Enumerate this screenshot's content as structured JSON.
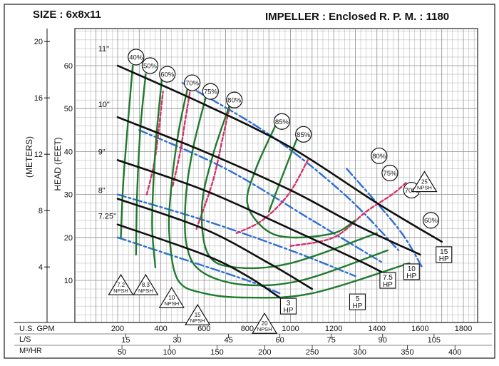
{
  "header": {
    "size_label": "SIZE : 6x8x11",
    "impeller_label": "IMPELLER : Enclosed R. P. M. : 1180"
  },
  "colors": {
    "background": "#ffffff",
    "grid": "#8e8e8e",
    "head_curve": "#101010",
    "efficiency_curve": "#1f7a2e",
    "npsh_curve": "#d6336c",
    "hp_curve": "#2f6fd1"
  },
  "chart_data": {
    "type": "line",
    "title": "",
    "rpm": 1180,
    "grid": true,
    "x_axes": [
      {
        "label": "U.S. GPM",
        "ticks": [
          "200",
          "400",
          "600",
          "800",
          "1000",
          "1200",
          "1400",
          "1600",
          "1800"
        ]
      },
      {
        "label": "L/S",
        "ticks": [
          "15",
          "30",
          "45",
          "60",
          "75",
          "90",
          "105"
        ]
      },
      {
        "label": "M³/HR",
        "ticks": [
          "50",
          "100",
          "150",
          "200",
          "250",
          "300",
          "350",
          "400"
        ]
      }
    ],
    "y_axes": [
      {
        "label": "HEAD (FEET)",
        "ticks": [
          "10",
          "20",
          "30",
          "40",
          "50",
          "60"
        ]
      },
      {
        "label": "(METERS)",
        "ticks": [
          "4",
          "8",
          "12",
          "16",
          "20"
        ]
      }
    ],
    "xlim": [
      0,
      1800
    ],
    "ylim": [
      0,
      68
    ],
    "series": [
      {
        "name": "11\"",
        "kind": "head",
        "points": [
          [
            200,
            60
          ],
          [
            600,
            51
          ],
          [
            1000,
            41
          ],
          [
            1400,
            28
          ],
          [
            1700,
            19
          ]
        ]
      },
      {
        "name": "10\"",
        "kind": "head",
        "points": [
          [
            200,
            48
          ],
          [
            600,
            40
          ],
          [
            1000,
            31
          ],
          [
            1300,
            23
          ],
          [
            1600,
            16
          ]
        ]
      },
      {
        "name": "9\"",
        "kind": "head",
        "points": [
          [
            200,
            38
          ],
          [
            600,
            31
          ],
          [
            1000,
            22
          ],
          [
            1300,
            15
          ],
          [
            1420,
            12
          ]
        ]
      },
      {
        "name": "8\"",
        "kind": "head",
        "points": [
          [
            200,
            29
          ],
          [
            600,
            22
          ],
          [
            900,
            14
          ],
          [
            1100,
            8
          ]
        ]
      },
      {
        "name": "7.25\"",
        "kind": "head",
        "points": [
          [
            200,
            23
          ],
          [
            600,
            16
          ],
          [
            800,
            11
          ],
          [
            950,
            6
          ]
        ]
      },
      {
        "name": "40%",
        "kind": "efficiency",
        "points": [
          [
            270,
            60
          ],
          [
            245,
            45
          ],
          [
            225,
            32
          ],
          [
            215,
            20
          ]
        ]
      },
      {
        "name": "50%",
        "kind": "efficiency",
        "points": [
          [
            330,
            58
          ],
          [
            305,
            45
          ],
          [
            290,
            30
          ],
          [
            285,
            16
          ]
        ]
      },
      {
        "name": "60%",
        "kind": "efficiency",
        "points": [
          [
            405,
            57
          ],
          [
            380,
            44
          ],
          [
            365,
            32
          ],
          [
            360,
            22
          ],
          [
            375,
            13
          ]
        ]
      },
      {
        "name": "70%",
        "kind": "efficiency",
        "points": [
          [
            525,
            55
          ],
          [
            480,
            44
          ],
          [
            445,
            30
          ],
          [
            440,
            20
          ],
          [
            480,
            10
          ],
          [
            600,
            7
          ],
          [
            800,
            6
          ],
          [
            1100,
            7
          ],
          [
            1550,
            14
          ]
        ]
      },
      {
        "name": "75%",
        "kind": "efficiency",
        "points": [
          [
            610,
            53
          ],
          [
            550,
            41
          ],
          [
            515,
            29
          ],
          [
            520,
            18
          ],
          [
            590,
            12
          ],
          [
            780,
            9
          ],
          [
            1050,
            10
          ],
          [
            1450,
            17
          ]
        ]
      },
      {
        "name": "80%",
        "kind": "efficiency",
        "points": [
          [
            720,
            51
          ],
          [
            640,
            39
          ],
          [
            590,
            27
          ],
          [
            620,
            16
          ],
          [
            750,
            13
          ],
          [
            1000,
            14
          ],
          [
            1400,
            21
          ]
        ]
      },
      {
        "name": "85%",
        "kind": "efficiency",
        "points": [
          [
            930,
            46
          ],
          [
            840,
            36
          ],
          [
            800,
            28
          ],
          [
            880,
            22
          ],
          [
            1000,
            20
          ],
          [
            1200,
            21
          ],
          [
            1300,
            24
          ]
        ]
      },
      {
        "name": "85%",
        "kind": "efficiency",
        "points": [
          [
            1030,
            43
          ],
          [
            960,
            34
          ],
          [
            900,
            26
          ]
        ]
      },
      {
        "name": "7.2 NPSH",
        "kind": "npsh",
        "points": []
      },
      {
        "name": "8.3 NPSH",
        "kind": "npsh",
        "points": [
          [
            335,
            30
          ],
          [
            375,
            39
          ],
          [
            410,
            54
          ]
        ]
      },
      {
        "name": "10 NPSH",
        "kind": "npsh",
        "points": [
          [
            455,
            32
          ],
          [
            490,
            40
          ],
          [
            515,
            48
          ],
          [
            545,
            57
          ]
        ]
      },
      {
        "name": "15 NPSH",
        "kind": "npsh",
        "points": [
          [
            565,
            22
          ],
          [
            640,
            33
          ],
          [
            690,
            44
          ],
          [
            730,
            53
          ]
        ]
      },
      {
        "name": "20 NPSH",
        "kind": "npsh",
        "points": [
          [
            750,
            21
          ],
          [
            870,
            24
          ],
          [
            990,
            30
          ],
          [
            1080,
            38
          ]
        ]
      },
      {
        "name": "25 NPSH",
        "kind": "npsh",
        "points": [
          [
            1000,
            18
          ],
          [
            1200,
            20
          ],
          [
            1350,
            26
          ],
          [
            1470,
            30
          ],
          [
            1540,
            33
          ]
        ]
      },
      {
        "name": "3 HP",
        "kind": "hp",
        "points": [
          [
            200,
            20
          ],
          [
            500,
            15
          ],
          [
            800,
            10
          ],
          [
            950,
            7
          ]
        ]
      },
      {
        "name": "5 HP",
        "kind": "hp",
        "points": [
          [
            200,
            30
          ],
          [
            600,
            24
          ],
          [
            1000,
            17
          ],
          [
            1300,
            11
          ]
        ]
      },
      {
        "name": "7.5 HP",
        "kind": "hp",
        "points": [
          [
            300,
            45
          ],
          [
            700,
            36
          ],
          [
            1100,
            24
          ],
          [
            1430,
            14
          ]
        ]
      },
      {
        "name": "10 HP",
        "kind": "hp",
        "points": [
          [
            500,
            56
          ],
          [
            900,
            44
          ],
          [
            1250,
            30
          ],
          [
            1500,
            17
          ]
        ]
      },
      {
        "name": "15 HP",
        "kind": "hp",
        "points": [
          [
            1260,
            36
          ],
          [
            1500,
            22
          ],
          [
            1610,
            13
          ]
        ]
      }
    ],
    "npsh_badges": [
      {
        "label": "7.2 NPSH",
        "gpm": 215,
        "head": 8
      },
      {
        "label": "8.3 NPSH",
        "gpm": 330,
        "head": 8
      },
      {
        "label": "10 NPSH",
        "gpm": 450,
        "head": 5
      },
      {
        "label": "15 NPSH",
        "gpm": 570,
        "head": 1
      },
      {
        "label": "20 NPSH",
        "gpm": 880,
        "head": -1
      },
      {
        "label": "25 NPSH",
        "gpm": 1620,
        "head": 32
      }
    ],
    "efficiency_badges": [
      {
        "label": "40%",
        "gpm": 285,
        "head": 62
      },
      {
        "label": "50%",
        "gpm": 350,
        "head": 60
      },
      {
        "label": "60%",
        "gpm": 430,
        "head": 58
      },
      {
        "label": "70%",
        "gpm": 545,
        "head": 56
      },
      {
        "label": "75%",
        "gpm": 630,
        "head": 54
      },
      {
        "label": "80%",
        "gpm": 740,
        "head": 52
      },
      {
        "label": "85%",
        "gpm": 960,
        "head": 47
      },
      {
        "label": "85%",
        "gpm": 1060,
        "head": 44
      },
      {
        "label": "80%",
        "gpm": 1410,
        "head": 39
      },
      {
        "label": "75%",
        "gpm": 1460,
        "head": 35
      },
      {
        "label": "70%",
        "gpm": 1560,
        "head": 31
      },
      {
        "label": "60%",
        "gpm": 1650,
        "head": 24
      }
    ],
    "hp_labels": [
      {
        "label": "3 HP",
        "gpm": 990,
        "head": 4
      },
      {
        "label": "5 HP",
        "gpm": 1310,
        "head": 5
      },
      {
        "label": "7.5 HP",
        "gpm": 1450,
        "head": 10
      },
      {
        "label": "10 HP",
        "gpm": 1560,
        "head": 12
      },
      {
        "label": "15 HP",
        "gpm": 1710,
        "head": 16
      }
    ],
    "diameter_labels": [
      {
        "label": "11\"",
        "gpm": 100,
        "head": 64
      },
      {
        "label": "10\"",
        "gpm": 100,
        "head": 51
      },
      {
        "label": "9\"",
        "gpm": 100,
        "head": 40
      },
      {
        "label": "8\"",
        "gpm": 100,
        "head": 31
      },
      {
        "label": "7.25\"",
        "gpm": 100,
        "head": 25
      }
    ]
  }
}
